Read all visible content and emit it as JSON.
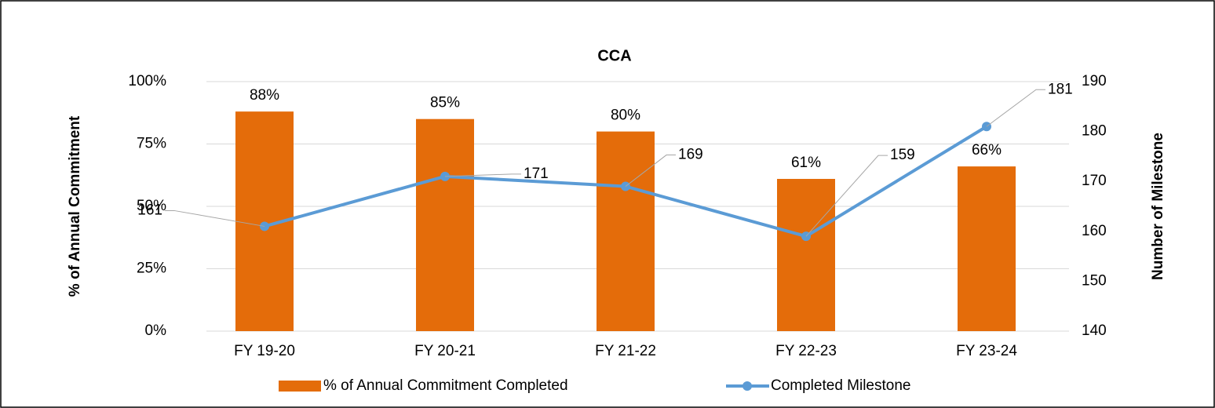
{
  "chart_data": {
    "type": "bar",
    "title": "CCA",
    "ylabel": "% of Annual Commitment",
    "y2label": "Number of Milestone",
    "categories": [
      "FY 19-20",
      "FY 20-21",
      "FY 21-22",
      "FY 22-23",
      "FY 23-24"
    ],
    "series": [
      {
        "name": "% of Annual Commitment Completed",
        "type": "bar",
        "color": "#e46c0a",
        "values": [
          88,
          85,
          80,
          61,
          66
        ],
        "value_labels": [
          "88%",
          "85%",
          "80%",
          "61%",
          "66%"
        ]
      },
      {
        "name": "Completed Milestone",
        "type": "line",
        "axis": "y2",
        "color": "#5b9bd5",
        "values": [
          161,
          171,
          169,
          159,
          181
        ]
      }
    ],
    "ylim": [
      0,
      100
    ],
    "yticks": [
      {
        "value": 0,
        "label": "0%"
      },
      {
        "value": 25,
        "label": "25%"
      },
      {
        "value": 50,
        "label": "50%"
      },
      {
        "value": 75,
        "label": "75%"
      },
      {
        "value": 100,
        "label": "100%"
      }
    ],
    "y2lim": [
      140,
      190
    ],
    "y2ticks": [
      140,
      150,
      160,
      170,
      180,
      190
    ],
    "grid": true,
    "legend": "bottom"
  }
}
